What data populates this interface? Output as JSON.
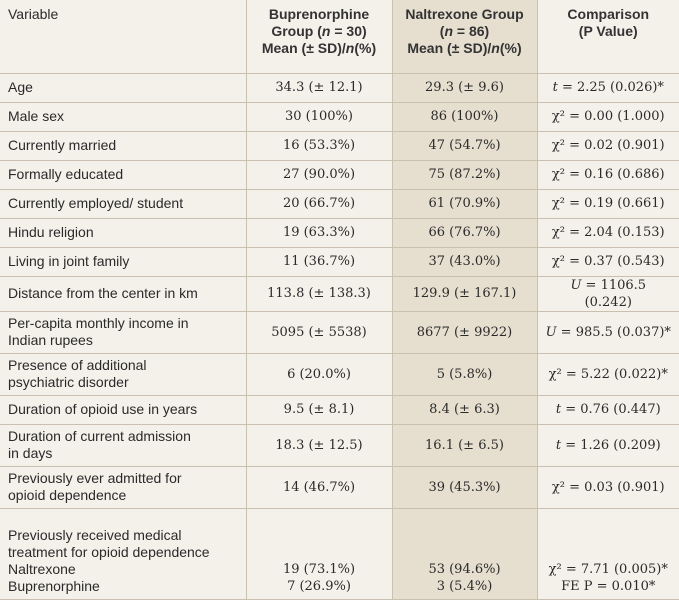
{
  "header": {
    "variable": "Variable",
    "bup_line1": "Buprenorphine",
    "bup_line2_pre": "Group (",
    "bup_line2_n": "n",
    "bup_line2_post": " = 30)",
    "bup_line3_pre": "Mean (± SD)/",
    "bup_line3_n": "n",
    "bup_line3_post": "(%)",
    "nal_line1": "Naltrexone Group",
    "nal_line2_pre": "(",
    "nal_line2_n": "n",
    "nal_line2_post": " = 86)",
    "nal_line3_pre": "Mean (± SD)/",
    "nal_line3_n": "n",
    "nal_line3_post": "(%)",
    "cmp_line1": "Comparison",
    "cmp_line2": "(P Value)"
  },
  "rows": [
    {
      "variable": "Age",
      "bup": "34.3 (± 12.1)",
      "nal": "29.3 (± 9.6)",
      "stat": "t",
      "stat_val": " = 2.25 (0.026)*"
    },
    {
      "variable": "Male sex",
      "bup": "30 (100%)",
      "nal": "86 (100%)",
      "stat": "χ² = 0.00 (1.000)"
    },
    {
      "variable": "Currently married",
      "bup": "16 (53.3%)",
      "nal": "47 (54.7%)",
      "stat": "χ² = 0.02 (0.901)"
    },
    {
      "variable": "Formally educated",
      "bup": "27 (90.0%)",
      "nal": "75 (87.2%)",
      "stat": "χ² = 0.16 (0.686)"
    },
    {
      "variable": "Currently employed/ student",
      "bup": "20 (66.7%)",
      "nal": "61 (70.9%)",
      "stat": "χ² = 0.19 (0.661)"
    },
    {
      "variable": "Hindu religion",
      "bup": "19 (63.3%)",
      "nal": "66 (76.7%)",
      "stat": "χ² = 2.04 (0.153)"
    },
    {
      "variable": "Living in joint family",
      "bup": "11 (36.7%)",
      "nal": "37 (43.0%)",
      "stat": "χ² = 0.37 (0.543)"
    },
    {
      "variable": "Distance from the center in km",
      "bup": "113.8 (± 138.3)",
      "nal": "129.9 (± 167.1)",
      "stat": "U",
      "stat_val": " = 1106.5 (0.242)"
    },
    {
      "variable_l1": "Per-capita monthly income in",
      "variable_l2": "Indian rupees",
      "bup": "5095 (± 5538)",
      "nal": "8677 (± 9922)",
      "stat": "U",
      "stat_val": " = 985.5 (0.037)*"
    },
    {
      "variable_l1": "Presence of additional",
      "variable_l2": "psychiatric disorder",
      "bup": "6 (20.0%)",
      "nal": "5 (5.8%)",
      "stat": "χ² = 5.22 (0.022)*"
    },
    {
      "variable": "Duration of opioid use in years",
      "bup": "9.5 (± 8.1)",
      "nal": "8.4 (± 6.3)",
      "stat": "t",
      "stat_val": " = 0.76 (0.447)"
    },
    {
      "variable_l1": "Duration of current admission",
      "variable_l2": "in days",
      "bup": "18.3 (± 12.5)",
      "nal": "16.1 (± 6.5)",
      "stat": "t",
      "stat_val": " = 1.26 (0.209)"
    },
    {
      "variable_l1": "Previously ever admitted for",
      "variable_l2": "opioid dependence",
      "bup": "14 (46.7%)",
      "nal": "39 (45.3%)",
      "stat": "χ² = 0.03 (0.901)"
    },
    {
      "variable_l1": "Previously received medical",
      "variable_l2": "treatment for opioid dependence",
      "sub1": "Naltrexone",
      "sub2": "Buprenorphine",
      "bup1": "19 (73.1%)",
      "bup2": "7 (26.9%)",
      "nal1": "53 (94.6%)",
      "nal2": "3 (5.4%)",
      "stat1": "χ² = 7.71 (0.005)*",
      "stat2": "FE P = 0.010*"
    }
  ]
}
